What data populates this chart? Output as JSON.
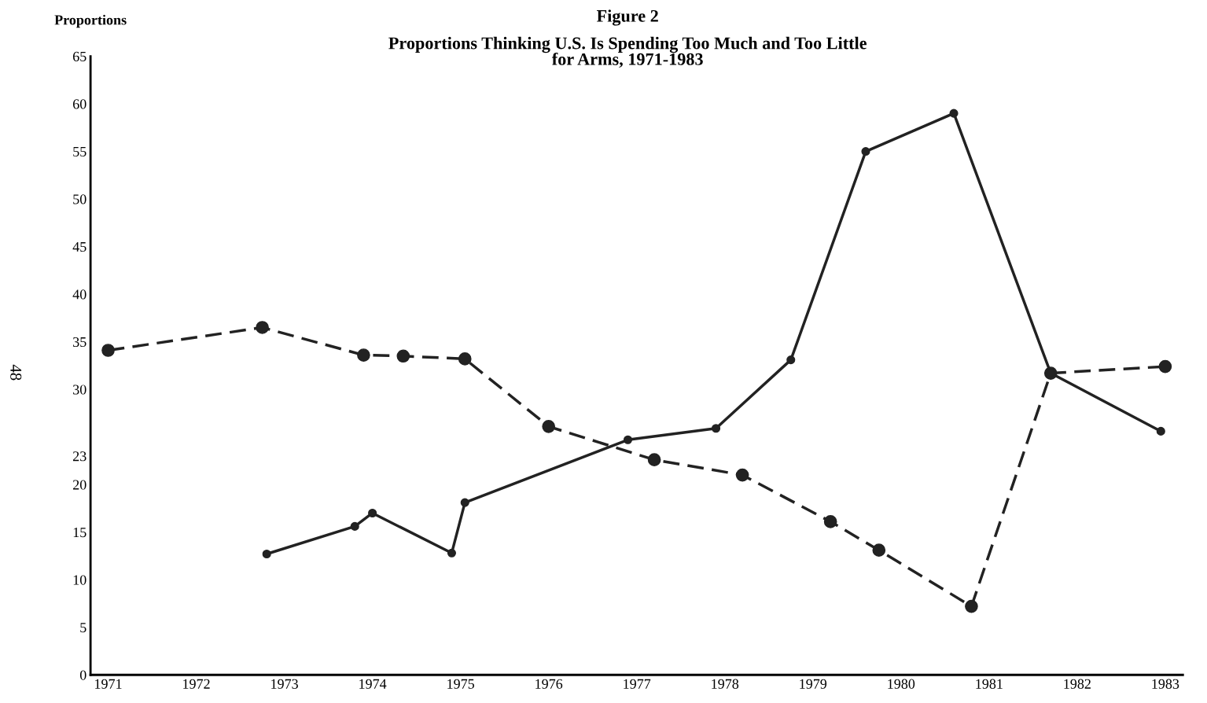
{
  "chart_data": {
    "type": "line",
    "title": "Figure 2",
    "subtitle": "Proportions Thinking U.S. Is Spending Too Much and Too Little\nfor Arms, 1971-1983",
    "ylabel": "Proportions",
    "series": [
      {
        "color": "#222222",
        "line_style": "dashed",
        "x": [
          1971.0,
          1972.75,
          1973.9,
          1974.35,
          1975.05,
          1976.0,
          1977.2,
          1978.2,
          1979.2,
          1979.75,
          1980.8,
          1981.7,
          1983.0
        ],
        "values": [
          34.1,
          36.5,
          33.6,
          33.5,
          33.2,
          26.1,
          22.6,
          21.0,
          16.1,
          13.1,
          7.2,
          31.7,
          32.4
        ]
      },
      {
        "color": "#222222",
        "line_style": "solid",
        "x": [
          1972.8,
          1973.8,
          1974.0,
          1974.9,
          1975.05,
          1976.9,
          1977.9,
          1978.75,
          1979.6,
          1980.6,
          1981.7,
          1982.95
        ],
        "values": [
          12.7,
          15.6,
          17.0,
          12.8,
          18.1,
          24.7,
          25.9,
          33.1,
          55.0,
          59.0,
          31.7,
          25.6
        ]
      }
    ],
    "marker": "circle",
    "grid": false,
    "legend": false,
    "xlim": [
      1970.8,
      1983.2
    ],
    "xticks": [
      1971,
      1972,
      1973,
      1974,
      1975,
      1976,
      1977,
      1978,
      1979,
      1980,
      1981,
      1982,
      1983
    ],
    "ylim": [
      0,
      65
    ],
    "yticks": [
      0,
      5,
      10,
      15,
      20,
      23,
      30,
      35,
      40,
      45,
      50,
      55,
      60,
      65
    ],
    "annotations": [
      "48"
    ]
  }
}
